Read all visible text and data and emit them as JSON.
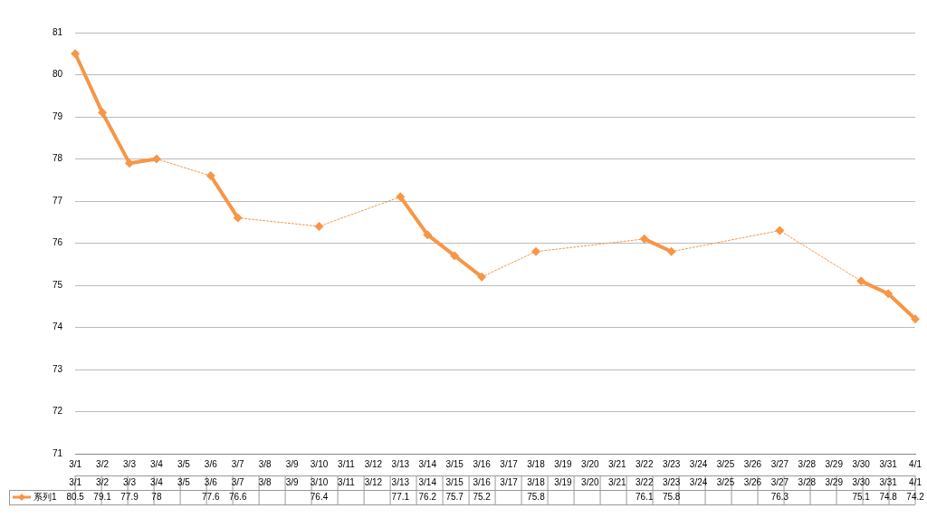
{
  "chart_data": {
    "type": "line",
    "categories": [
      "3/1",
      "3/2",
      "3/3",
      "3/4",
      "3/5",
      "3/6",
      "3/7",
      "3/8",
      "3/9",
      "3/10",
      "3/11",
      "3/12",
      "3/13",
      "3/14",
      "3/15",
      "3/16",
      "3/17",
      "3/18",
      "3/19",
      "3/20",
      "3/21",
      "3/22",
      "3/23",
      "3/24",
      "3/25",
      "3/26",
      "3/27",
      "3/28",
      "3/29",
      "3/30",
      "3/31",
      "4/1"
    ],
    "series": [
      {
        "name": "系列1",
        "color": "#f79646",
        "values": [
          80.5,
          79.1,
          77.9,
          78,
          null,
          77.6,
          76.6,
          null,
          null,
          76.4,
          null,
          null,
          77.1,
          76.2,
          75.7,
          75.2,
          null,
          75.8,
          null,
          null,
          null,
          76.1,
          75.8,
          null,
          null,
          null,
          76.3,
          null,
          null,
          75.1,
          74.8,
          74.2
        ]
      }
    ],
    "ylim": [
      71,
      81
    ],
    "yticks": [
      71,
      72,
      73,
      74,
      75,
      76,
      77,
      78,
      79,
      80,
      81
    ],
    "grid": "y",
    "marker": "diamond",
    "line_style": "solid",
    "legend": "bottom left",
    "data_labels": true
  }
}
